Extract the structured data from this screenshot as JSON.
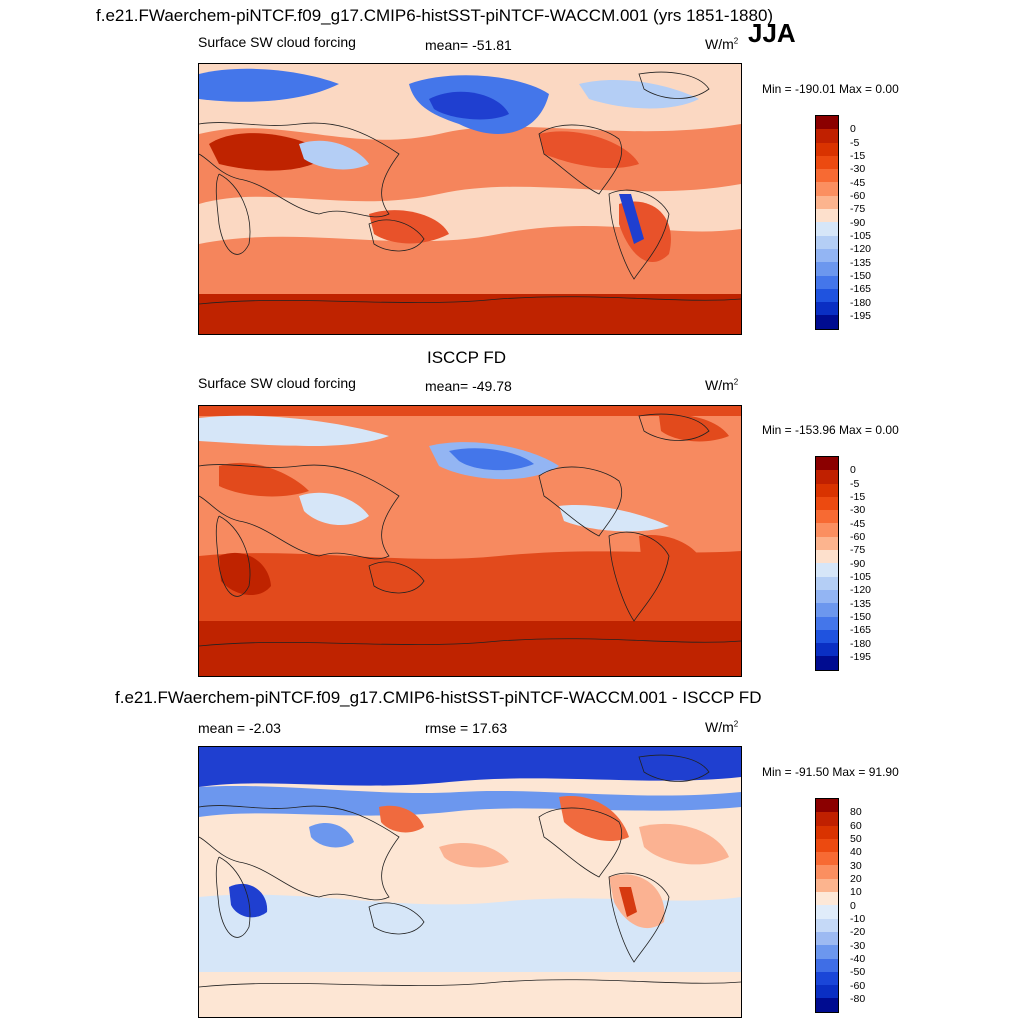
{
  "figure": {
    "season": "JJA",
    "units_base": "W/m",
    "units_exp": "2"
  },
  "panels": [
    {
      "title": "f.e21.FWaerchem-piNTCF.f09_g17.CMIP6-histSST-piNTCF-WACCM.001 (yrs 1851-1880)",
      "left_label": "Surface SW cloud forcing",
      "stat_label": "mean= -51.81",
      "minmax": "Min = -190.01 Max =   0.00",
      "colorbar": {
        "labels": [
          "0",
          "-5",
          "-15",
          "-30",
          "-45",
          "-60",
          "-75",
          "-90",
          "-105",
          "-120",
          "-135",
          "-150",
          "-165",
          "-180",
          "-195"
        ],
        "colors": [
          "#8b0000",
          "#c02000",
          "#d93300",
          "#ec4a10",
          "#f76a33",
          "#fb8f60",
          "#fcb48e",
          "#fde0cc",
          "#d6e6f8",
          "#b4cef5",
          "#93b5f3",
          "#6c97ee",
          "#4476ea",
          "#1f53df",
          "#0a2fc3",
          "#000c90"
        ]
      },
      "map_colors": {
        "bg": "#fbd8c2",
        "warm1": "#f5855c",
        "warm2": "#e8522a",
        "warm3": "#bf2300",
        "cool1": "#b4cef5",
        "cool2": "#4476ea",
        "cool3": "#1f3fd0"
      }
    },
    {
      "title": "ISCCP FD",
      "left_label": "Surface SW cloud forcing",
      "stat_label": "mean= -49.78",
      "minmax": "Min = -153.96 Max =   0.00",
      "colorbar": {
        "labels": [
          "0",
          "-5",
          "-15",
          "-30",
          "-45",
          "-60",
          "-75",
          "-90",
          "-105",
          "-120",
          "-135",
          "-150",
          "-165",
          "-180",
          "-195"
        ],
        "colors": [
          "#8b0000",
          "#c02000",
          "#d93300",
          "#ec4a10",
          "#f76a33",
          "#fb8f60",
          "#fcb48e",
          "#fde0cc",
          "#d6e6f8",
          "#b4cef5",
          "#93b5f3",
          "#6c97ee",
          "#4476ea",
          "#1f53df",
          "#0a2fc3",
          "#000c90"
        ]
      },
      "map_colors": {
        "bg": "#f78a60",
        "warm1": "#f0683c",
        "warm2": "#e24a1c",
        "warm3": "#bf2300",
        "cool1": "#d6e6f8",
        "cool2": "#93b5f3",
        "cool3": "#4476ea"
      }
    },
    {
      "title": "f.e21.FWaerchem-piNTCF.f09_g17.CMIP6-histSST-piNTCF-WACCM.001 - ISCCP FD",
      "left_label": "mean =  -2.03",
      "stat_label": "rmse =  17.63",
      "minmax": "Min = -91.50 Max =  91.90",
      "colorbar": {
        "labels": [
          "80",
          "60",
          "50",
          "40",
          "30",
          "20",
          "10",
          "0",
          "-10",
          "-20",
          "-30",
          "-40",
          "-50",
          "-60",
          "-80"
        ],
        "colors": [
          "#8b0000",
          "#c02000",
          "#d93300",
          "#ec4a10",
          "#f76a33",
          "#fb8f60",
          "#fcb48e",
          "#fde8d8",
          "#e0ecfa",
          "#c5d9f7",
          "#9dbaf2",
          "#6c97ee",
          "#3f6ee6",
          "#1a46d8",
          "#0a2fc3",
          "#000c90"
        ]
      },
      "map_colors": {
        "bg": "#fde6d4",
        "warm1": "#fbb292",
        "warm2": "#f06a3e",
        "warm3": "#d63a10",
        "cool1": "#d6e6f8",
        "cool2": "#6c97ee",
        "cool3": "#1f3fd0"
      }
    }
  ]
}
